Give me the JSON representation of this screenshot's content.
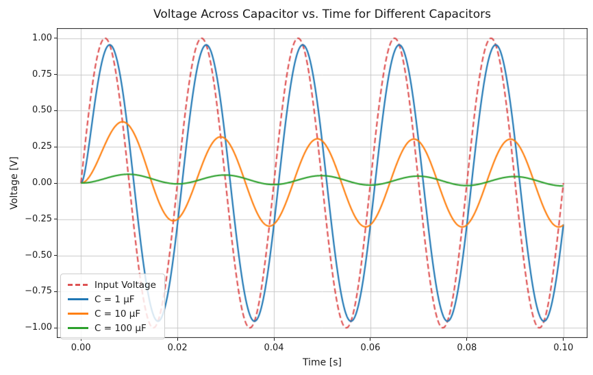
{
  "chart_data": {
    "type": "line",
    "title": "Voltage Across Capacitor vs. Time for Different Capacitors",
    "xlabel": "Time [s]",
    "ylabel": "Voltage [V]",
    "xlim": [
      -0.005,
      0.105
    ],
    "ylim": [
      -1.07,
      1.07
    ],
    "t_range": [
      0,
      0.1
    ],
    "samples": 1500,
    "grid": true,
    "grid_color": "#c8c8c8",
    "spine_color": "#1a1a1a",
    "xticks": [
      0.0,
      0.02,
      0.04,
      0.06,
      0.08,
      0.1
    ],
    "xtick_labels": [
      "0.00",
      "0.02",
      "0.04",
      "0.06",
      "0.08",
      "0.10"
    ],
    "yticks": [
      1.0,
      0.75,
      0.5,
      0.25,
      0.0,
      -0.25,
      -0.5,
      -0.75,
      -1.0
    ],
    "ytick_labels": [
      "1.00",
      "0.75",
      "0.50",
      "0.25",
      "0.00",
      "−0.25",
      "−0.50",
      "−0.75",
      "−1.00"
    ],
    "legend": {
      "position": "lower-left",
      "labels": [
        "Input Voltage",
        "C = 1 µF",
        "C = 10 µF",
        "C = 100 µF"
      ]
    },
    "signal": {
      "frequency_hz": 50,
      "input_amplitude_v": 1.0
    },
    "formula": "v(t) = amplitude*sin(2*pi*frequency_hz*t - phase_rad) + transient_coeff*exp(-t/tau_s)",
    "series": [
      {
        "name": "Input Voltage",
        "color": "#d62728",
        "alpha": 0.8,
        "style": "dashed",
        "dash": [
          8,
          4
        ],
        "amplitude": 1.0,
        "phase_rad": 0.0,
        "transient_coeff": 0.0,
        "tau_s": null
      },
      {
        "name": "C = 1 µF",
        "color": "#1f77b4",
        "alpha": 1.0,
        "style": "solid",
        "dash": [],
        "amplitude": 0.954,
        "phase_rad": 0.3044,
        "transient_coeff": 0.2862,
        "tau_s": 0.001
      },
      {
        "name": "C = 10 µF",
        "color": "#ff7f0e",
        "alpha": 1.0,
        "style": "solid",
        "dash": [],
        "amplitude": 0.3033,
        "phase_rad": 1.2626,
        "transient_coeff": 0.289,
        "tau_s": 0.01
      },
      {
        "name": "C = 100 µF",
        "color": "#2ca02c",
        "alpha": 1.0,
        "style": "solid",
        "dash": [],
        "amplitude": 0.03183,
        "phase_rad": 1.539,
        "transient_coeff": 0.0318,
        "tau_s": 0.1
      }
    ],
    "observed_peaks": {
      "input_first_peak_v": 1.0,
      "c1uF_first_peak_v": 0.96,
      "c10uF_first_peak_v": 0.43,
      "c10uF_steady_peak_v": 0.31,
      "c100uF_first_peak_v": 0.06
    }
  }
}
